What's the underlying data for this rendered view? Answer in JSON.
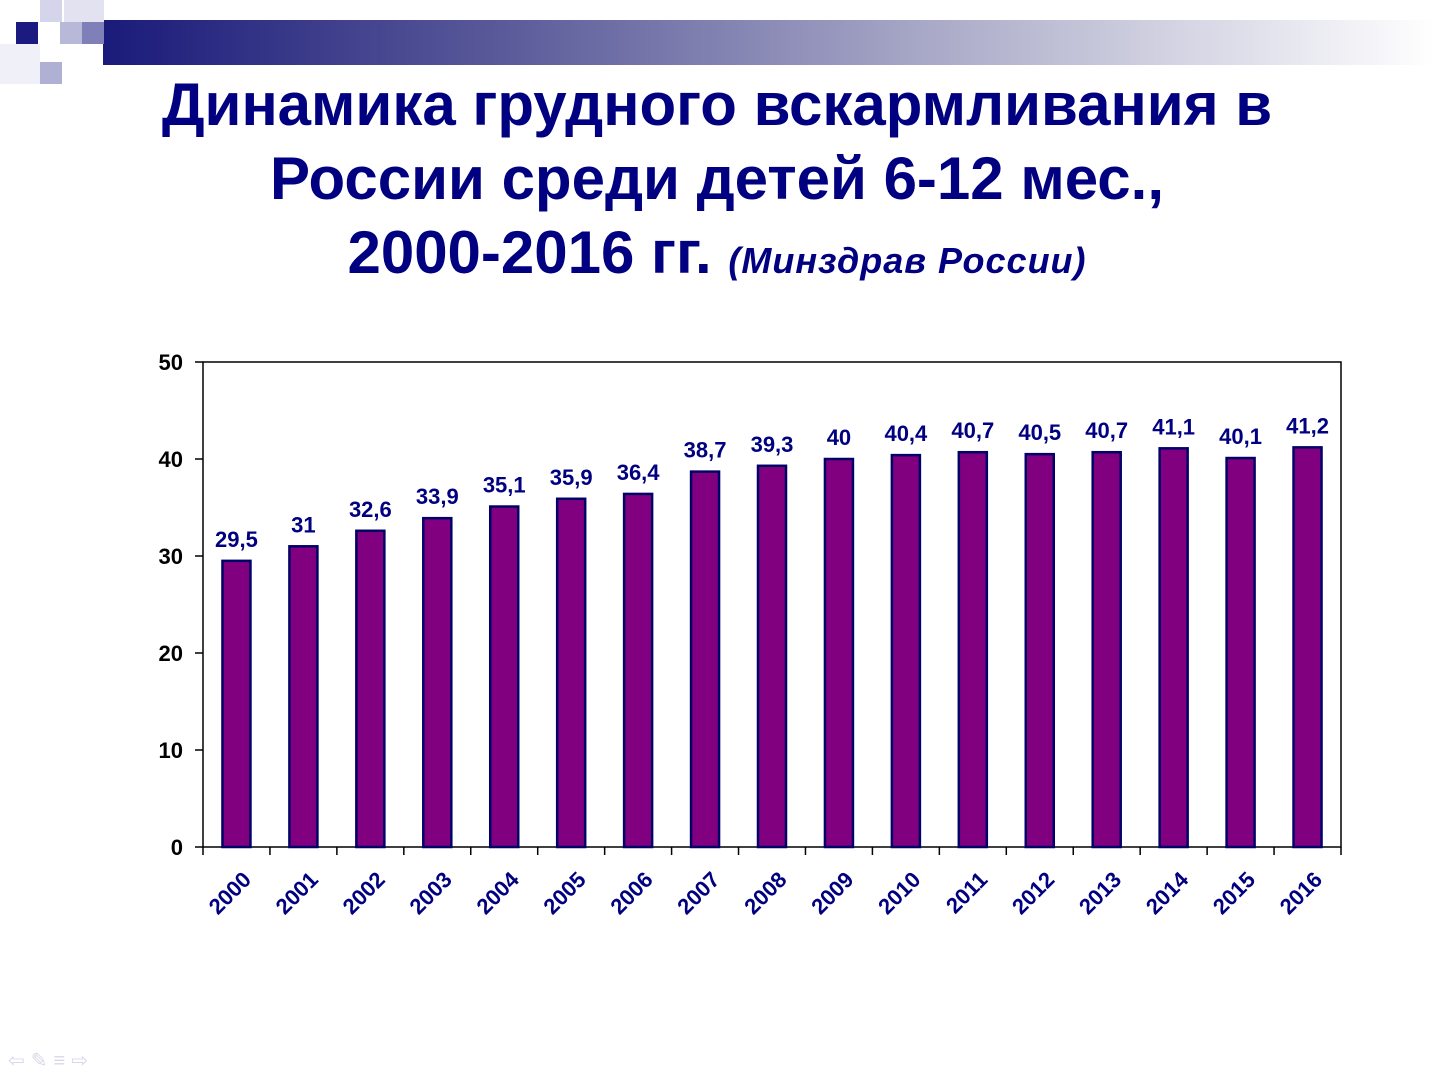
{
  "title": {
    "line1": "Динамика грудного вскармливания в",
    "line2": "России среди детей 6-12 мес.,",
    "line3_main": "2000-2016 гг.",
    "line3_source": "(Минздрав России)"
  },
  "colors": {
    "title": "#000080",
    "bar_fill": "#800080",
    "bar_stroke": "#000066",
    "labels": "#000080"
  },
  "nav_icons": [
    "arrow-left-icon",
    "pen-icon",
    "menu-icon",
    "arrow-right-icon"
  ],
  "chart_data": {
    "type": "bar",
    "categories": [
      "2000",
      "2001",
      "2002",
      "2003",
      "2004",
      "2005",
      "2006",
      "2007",
      "2008",
      "2009",
      "2010",
      "2011",
      "2012",
      "2013",
      "2014",
      "2015",
      "2016"
    ],
    "values": [
      29.5,
      31,
      32.6,
      33.9,
      35.1,
      35.9,
      36.4,
      38.7,
      39.3,
      40,
      40.4,
      40.7,
      40.5,
      40.7,
      41.1,
      40.1,
      41.2
    ],
    "data_labels": [
      "29,5",
      "31",
      "32,6",
      "33,9",
      "35,1",
      "35,9",
      "36,4",
      "38,7",
      "39,3",
      "40",
      "40,4",
      "40,7",
      "40,5",
      "40,7",
      "41,1",
      "40,1",
      "41,2"
    ],
    "ylim": [
      0,
      50
    ],
    "yticks": [
      0,
      10,
      20,
      30,
      40,
      50
    ],
    "grid": false,
    "legend": "none"
  }
}
